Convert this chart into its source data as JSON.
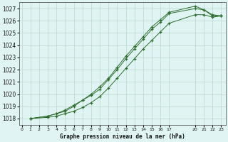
{
  "bg_color": "#e0f4f4",
  "grid_color": "#b8d8cc",
  "line_color": "#2d6e2d",
  "title": "Graphe pression niveau de la mer (hPa)",
  "xticks": [
    0,
    1,
    2,
    3,
    4,
    5,
    6,
    7,
    8,
    9,
    10,
    11,
    12,
    13,
    14,
    15,
    16,
    17,
    20,
    21,
    22,
    23
  ],
  "ylim": [
    1017.5,
    1027.5
  ],
  "xlim": [
    -0.3,
    23.5
  ],
  "yticks": [
    1018,
    1019,
    1020,
    1021,
    1022,
    1023,
    1024,
    1025,
    1026,
    1027
  ],
  "line1_x": [
    1,
    3,
    4,
    5,
    6,
    7,
    8,
    9,
    10,
    11,
    12,
    13,
    14,
    15,
    16,
    17,
    20,
    21,
    22,
    23
  ],
  "line1_y": [
    1018.0,
    1018.2,
    1018.4,
    1018.7,
    1019.1,
    1019.5,
    1020.0,
    1020.6,
    1021.3,
    1022.2,
    1023.1,
    1023.9,
    1024.7,
    1025.5,
    1026.1,
    1026.7,
    1027.2,
    1026.9,
    1026.4,
    1026.4
  ],
  "line2_x": [
    1,
    3,
    4,
    5,
    6,
    7,
    8,
    9,
    10,
    11,
    12,
    13,
    14,
    15,
    16,
    17,
    20,
    21,
    22,
    23
  ],
  "line2_y": [
    1018.0,
    1018.2,
    1018.4,
    1018.6,
    1019.0,
    1019.5,
    1019.9,
    1020.4,
    1021.2,
    1022.0,
    1022.9,
    1023.7,
    1024.5,
    1025.3,
    1025.9,
    1026.6,
    1027.0,
    1026.9,
    1026.5,
    1026.4
  ],
  "line3_x": [
    1,
    3,
    4,
    5,
    6,
    7,
    8,
    9,
    10,
    11,
    12,
    13,
    14,
    15,
    16,
    17,
    20,
    21,
    22,
    23
  ],
  "line3_y": [
    1018.0,
    1018.1,
    1018.2,
    1018.4,
    1018.6,
    1018.9,
    1019.3,
    1019.8,
    1020.5,
    1021.3,
    1022.1,
    1022.9,
    1023.7,
    1024.4,
    1025.1,
    1025.8,
    1026.5,
    1026.5,
    1026.3,
    1026.4
  ]
}
